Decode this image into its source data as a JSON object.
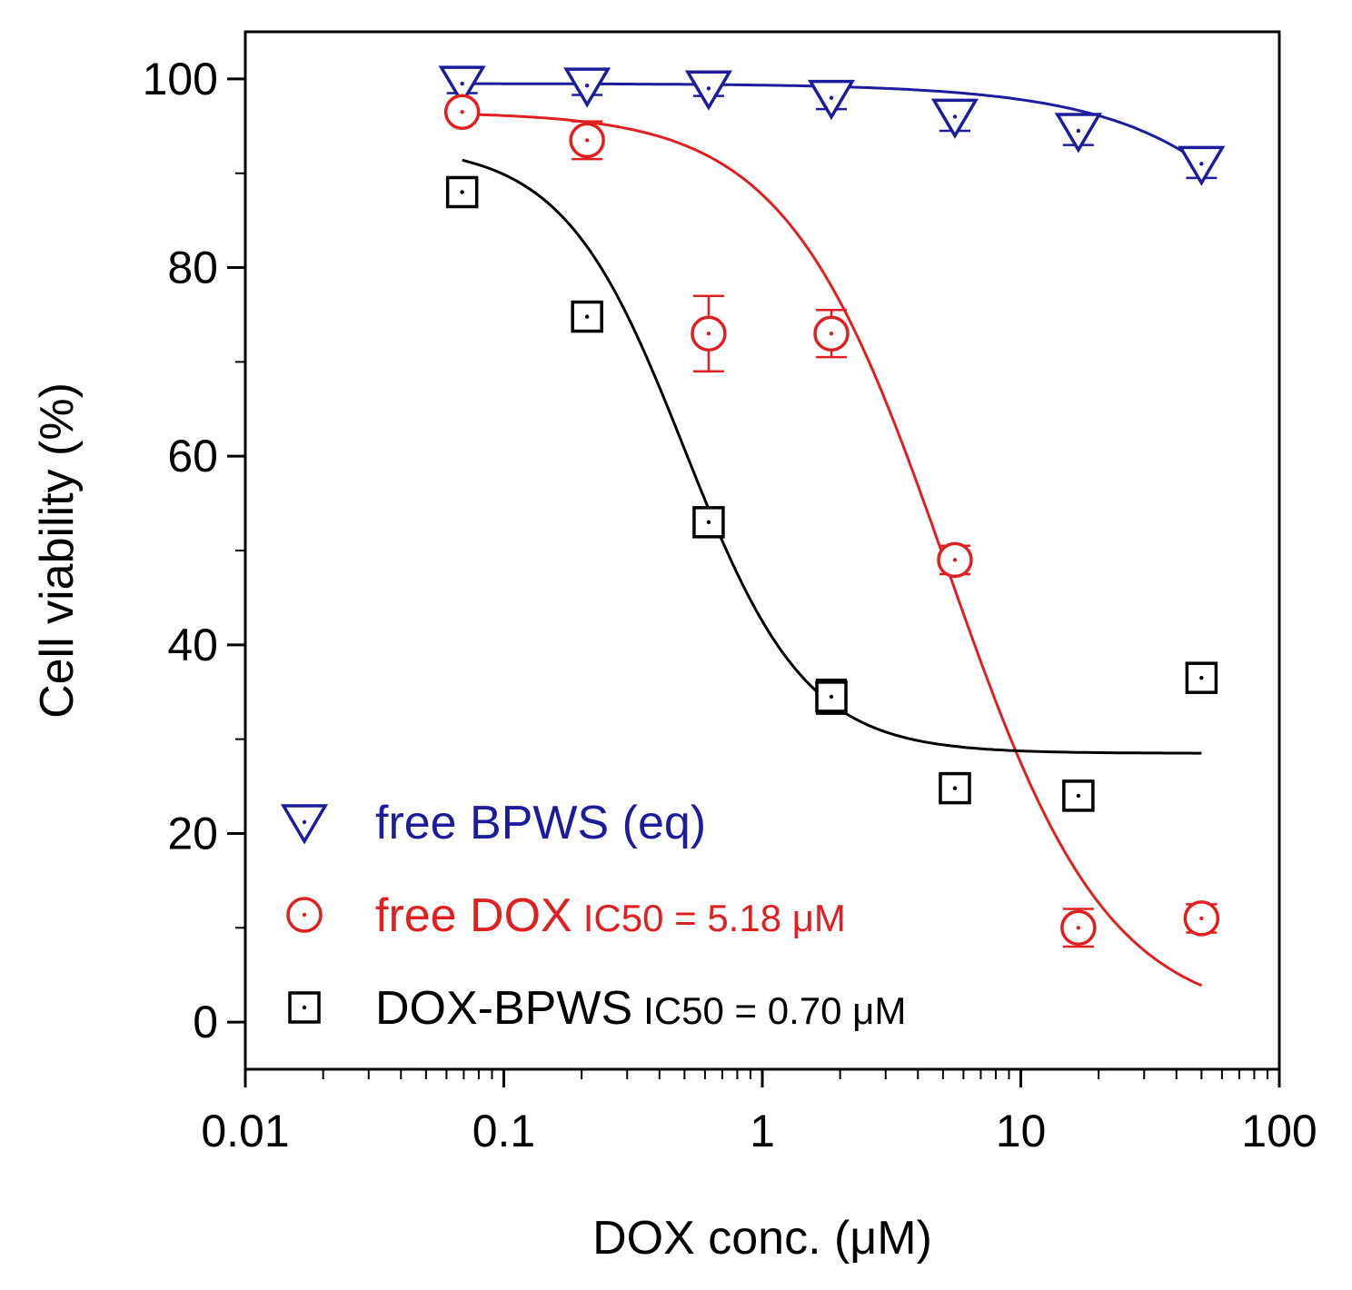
{
  "chart_data": {
    "type": "scatter",
    "title": "",
    "xlabel": "DOX conc. (μM)",
    "ylabel": "Cell viability (%)",
    "xscale": "log",
    "xlim": [
      0.01,
      100
    ],
    "ylim": [
      -5,
      105
    ],
    "x_ticks": [
      {
        "value": 0.01,
        "label": "0.01"
      },
      {
        "value": 0.1,
        "label": "0.1"
      },
      {
        "value": 1,
        "label": "1"
      },
      {
        "value": 10,
        "label": "10"
      },
      {
        "value": 100,
        "label": "100"
      }
    ],
    "y_ticks": [
      {
        "value": 0,
        "label": "0"
      },
      {
        "value": 20,
        "label": "20"
      },
      {
        "value": 40,
        "label": "40"
      },
      {
        "value": 60,
        "label": "60"
      },
      {
        "value": 80,
        "label": "80"
      },
      {
        "value": 100,
        "label": "100"
      }
    ],
    "legend_position": "bottom-left",
    "series": [
      {
        "name": "free BPWS (eq)",
        "name_suffix": "",
        "marker": "triangle-down",
        "color": "#1c1c9c",
        "x": [
          0.069,
          0.21,
          0.62,
          1.85,
          5.56,
          16.7,
          50
        ],
        "y": [
          99.5,
          99.3,
          99.0,
          98.0,
          96.0,
          94.5,
          91.0
        ],
        "err": [
          1.0,
          1.0,
          0.8,
          1.2,
          1.5,
          1.5,
          1.5
        ],
        "fit": {
          "type": "linear-in-x",
          "from": 0.069,
          "to": 50,
          "y0": 99.5,
          "y1": 91.0
        }
      },
      {
        "name": "free DOX",
        "name_suffix": "IC50 = 5.18 μM",
        "marker": "circle-dot",
        "color": "#e02020",
        "x": [
          0.069,
          0.21,
          0.62,
          1.85,
          5.56,
          16.7,
          50
        ],
        "y": [
          96.5,
          93.5,
          73.0,
          73.0,
          49.0,
          10.0,
          11.0
        ],
        "err": [
          0.8,
          2.0,
          4.0,
          2.5,
          1.5,
          2.0,
          1.5
        ],
        "fit": {
          "type": "logistic",
          "from": 0.069,
          "to": 50,
          "top": 96.5,
          "bottom": 0,
          "ec50": 5.18,
          "hill": 1.4
        }
      },
      {
        "name": "DOX-BPWS",
        "name_suffix": "IC50 = 0.70 μM",
        "marker": "square-dot",
        "color": "#000000",
        "x": [
          0.069,
          0.21,
          0.62,
          1.85,
          5.56,
          16.7,
          50
        ],
        "y": [
          88.0,
          74.8,
          53.0,
          34.5,
          24.8,
          24.0,
          36.5
        ],
        "err": [
          0.8,
          1.5,
          1.0,
          1.8,
          1.0,
          1.0,
          1.0
        ],
        "fit": {
          "type": "logistic",
          "from": 0.069,
          "to": 50,
          "top": 93,
          "bottom": 28.5,
          "ec50": 0.5,
          "hill": 1.85
        }
      }
    ]
  }
}
